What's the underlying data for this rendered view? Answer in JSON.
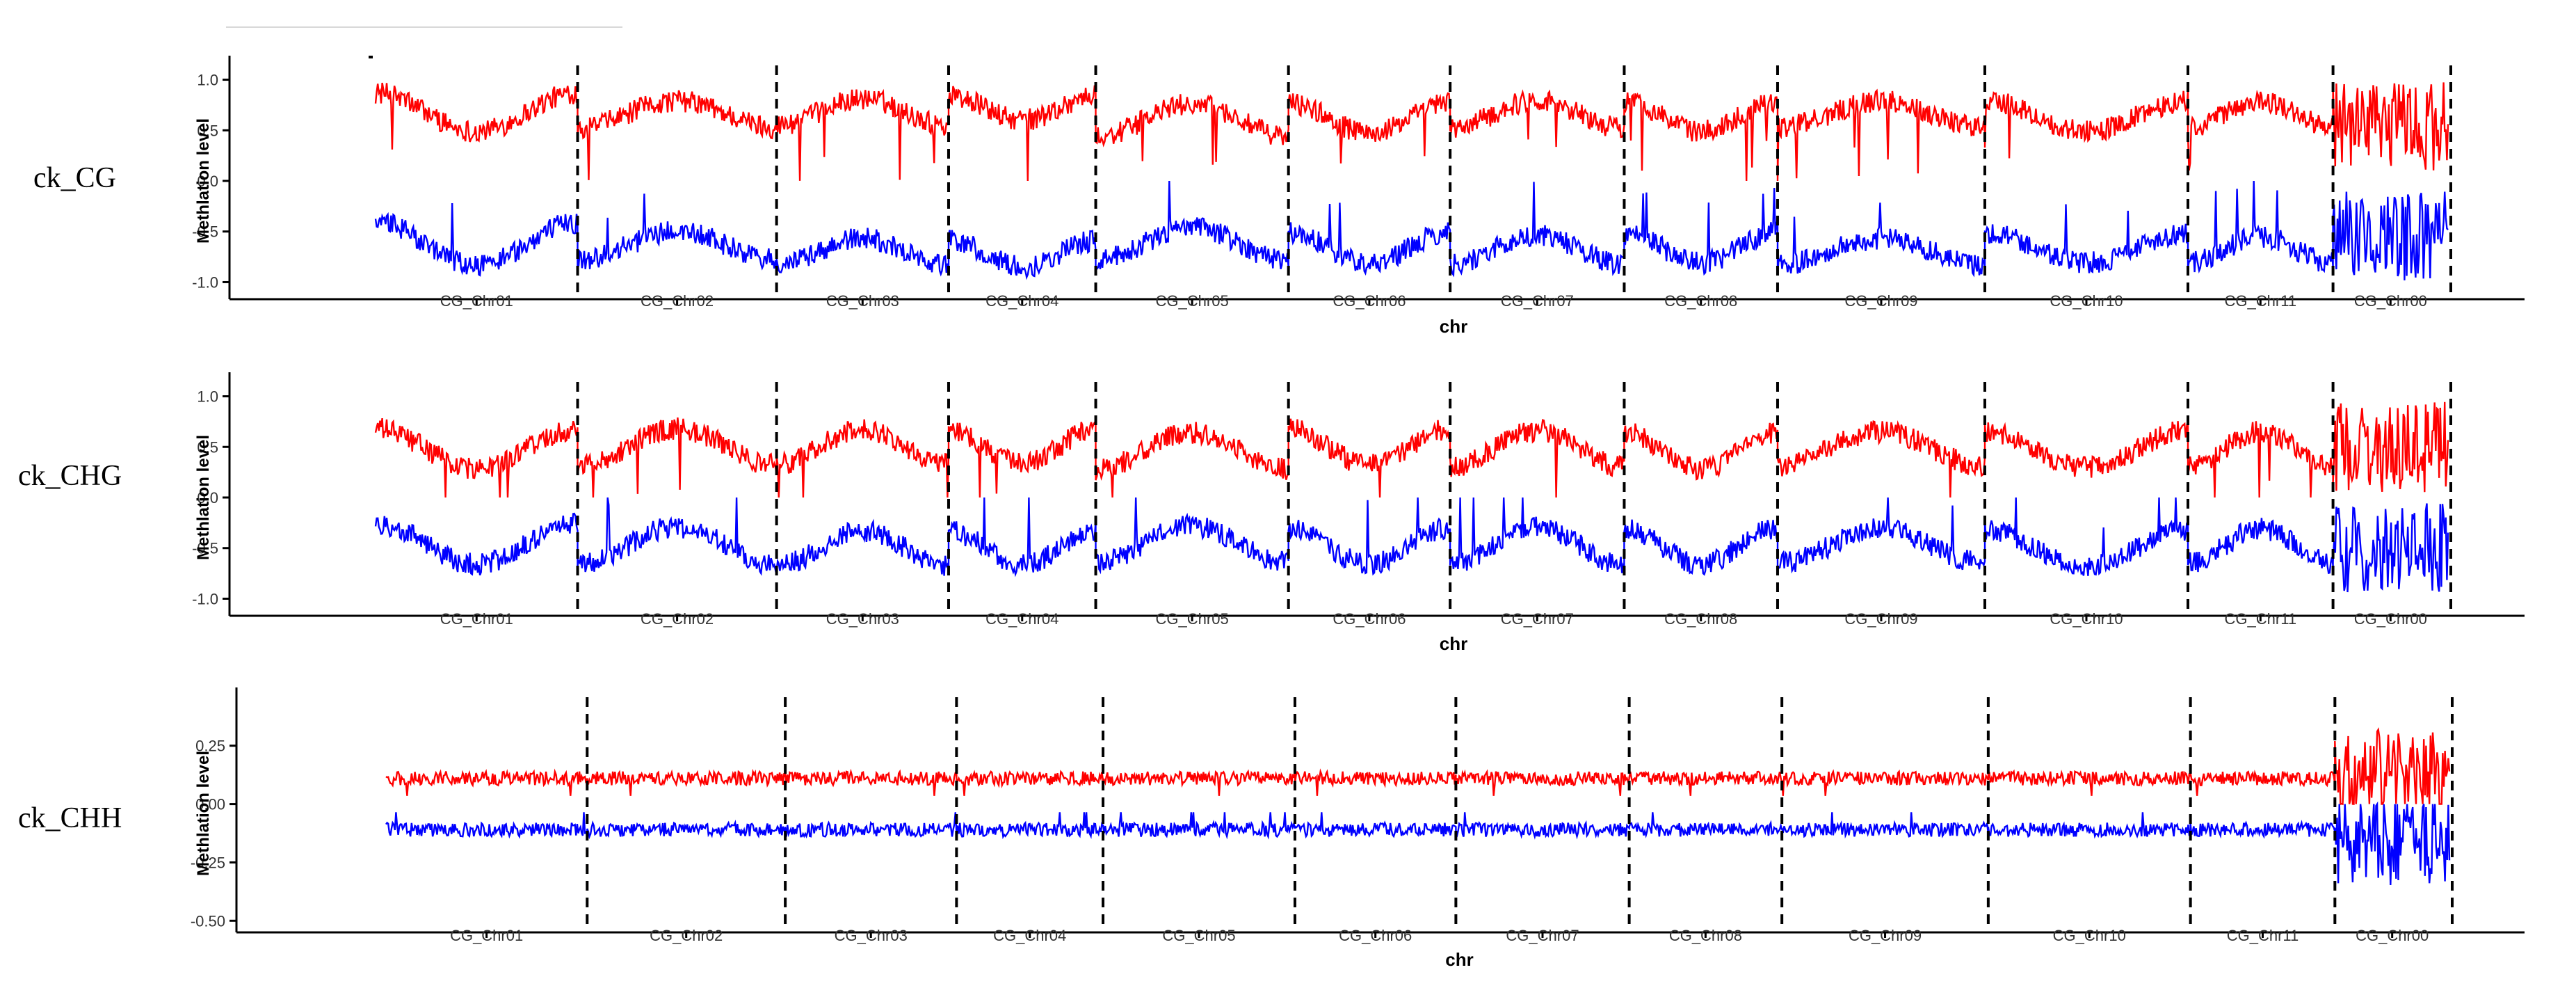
{
  "colors": {
    "upper": "#ff0000",
    "lower": "#0000ff",
    "axis": "#000000"
  },
  "chart_data": [
    {
      "type": "line",
      "panel_label": "ck_CG",
      "xlabel": "chr",
      "ylabel": "Methlation level",
      "ylim": [
        -1.1,
        1.1
      ],
      "yticks": [
        1.0,
        0.5,
        0.0,
        -0.5,
        -1.0
      ],
      "ytick_labels": [
        "1.0",
        "0.5",
        "0.0",
        "-0.5",
        "-1.0"
      ],
      "grid": false,
      "legend": "none",
      "chromosomes": [
        {
          "name": "CG_Chr01",
          "start": 0.0,
          "end": 0.0975,
          "pattern": "u",
          "upper_mean": 0.68,
          "upper_amp": 0.38,
          "lower_mean": -0.62,
          "lower_amp": 0.42
        },
        {
          "name": "CG_Chr02",
          "start": 0.0975,
          "end": 0.1935,
          "pattern": "n",
          "upper_mean": 0.66,
          "upper_amp": 0.26,
          "lower_mean": -0.64,
          "lower_amp": 0.28
        },
        {
          "name": "CG_Chr03",
          "start": 0.1935,
          "end": 0.2765,
          "pattern": "n",
          "upper_mean": 0.68,
          "upper_amp": 0.26,
          "lower_mean": -0.7,
          "lower_amp": 0.26
        },
        {
          "name": "CG_Chr04",
          "start": 0.2765,
          "end": 0.3475,
          "pattern": "u",
          "upper_mean": 0.72,
          "upper_amp": 0.24,
          "lower_mean": -0.72,
          "lower_amp": 0.26
        },
        {
          "name": "CG_Chr05",
          "start": 0.3475,
          "end": 0.4405,
          "pattern": "n",
          "upper_mean": 0.6,
          "upper_amp": 0.32,
          "lower_mean": -0.62,
          "lower_amp": 0.32
        },
        {
          "name": "CG_Chr06",
          "start": 0.4405,
          "end": 0.5185,
          "pattern": "u",
          "upper_mean": 0.62,
          "upper_amp": 0.3,
          "lower_mean": -0.66,
          "lower_amp": 0.3
        },
        {
          "name": "CG_Chr07",
          "start": 0.5185,
          "end": 0.6025,
          "pattern": "n",
          "upper_mean": 0.66,
          "upper_amp": 0.28,
          "lower_mean": -0.68,
          "lower_amp": 0.28
        },
        {
          "name": "CG_Chr08",
          "start": 0.6025,
          "end": 0.6765,
          "pattern": "u",
          "upper_mean": 0.64,
          "upper_amp": 0.3,
          "lower_mean": -0.66,
          "lower_amp": 0.3
        },
        {
          "name": "CG_Chr09",
          "start": 0.6765,
          "end": 0.7765,
          "pattern": "n",
          "upper_mean": 0.66,
          "upper_amp": 0.26,
          "lower_mean": -0.7,
          "lower_amp": 0.26
        },
        {
          "name": "CG_Chr10",
          "start": 0.7765,
          "end": 0.8745,
          "pattern": "u",
          "upper_mean": 0.64,
          "upper_amp": 0.3,
          "lower_mean": -0.66,
          "lower_amp": 0.3
        },
        {
          "name": "CG_Chr11",
          "start": 0.8745,
          "end": 0.9445,
          "pattern": "n",
          "upper_mean": 0.66,
          "upper_amp": 0.26,
          "lower_mean": -0.68,
          "lower_amp": 0.26
        },
        {
          "name": "CG_Chr00",
          "start": 0.9445,
          "end": 1.0,
          "pattern": "noise",
          "upper_mean": 0.55,
          "upper_amp": 0.45,
          "lower_mean": -0.55,
          "lower_amp": 0.45
        }
      ]
    },
    {
      "type": "line",
      "panel_label": "ck_CHG",
      "xlabel": "chr",
      "ylabel": "Methlation level",
      "ylim": [
        -1.1,
        1.1
      ],
      "yticks": [
        1.0,
        0.5,
        0.0,
        -0.5,
        -1.0
      ],
      "ytick_labels": [
        "1.0",
        "0.5",
        "0.0",
        "-0.5",
        "-1.0"
      ],
      "grid": false,
      "legend": "none",
      "chromosomes": [
        {
          "name": "CG_Chr01",
          "start": 0.0,
          "end": 0.0975,
          "pattern": "u",
          "upper_mean": 0.48,
          "upper_amp": 0.4,
          "lower_mean": -0.46,
          "lower_amp": 0.4
        },
        {
          "name": "CG_Chr02",
          "start": 0.0975,
          "end": 0.1935,
          "pattern": "n",
          "upper_mean": 0.5,
          "upper_amp": 0.36,
          "lower_mean": -0.48,
          "lower_amp": 0.38
        },
        {
          "name": "CG_Chr03",
          "start": 0.1935,
          "end": 0.2765,
          "pattern": "n",
          "upper_mean": 0.5,
          "upper_amp": 0.34,
          "lower_mean": -0.5,
          "lower_amp": 0.34
        },
        {
          "name": "CG_Chr04",
          "start": 0.2765,
          "end": 0.3475,
          "pattern": "u",
          "upper_mean": 0.5,
          "upper_amp": 0.34,
          "lower_mean": -0.5,
          "lower_amp": 0.34
        },
        {
          "name": "CG_Chr05",
          "start": 0.3475,
          "end": 0.4405,
          "pattern": "n",
          "upper_mean": 0.46,
          "upper_amp": 0.36,
          "lower_mean": -0.46,
          "lower_amp": 0.36
        },
        {
          "name": "CG_Chr06",
          "start": 0.4405,
          "end": 0.5185,
          "pattern": "u",
          "upper_mean": 0.5,
          "upper_amp": 0.36,
          "lower_mean": -0.48,
          "lower_amp": 0.36
        },
        {
          "name": "CG_Chr07",
          "start": 0.5185,
          "end": 0.6025,
          "pattern": "n",
          "upper_mean": 0.48,
          "upper_amp": 0.36,
          "lower_mean": -0.48,
          "lower_amp": 0.36
        },
        {
          "name": "CG_Chr08",
          "start": 0.6025,
          "end": 0.6765,
          "pattern": "u",
          "upper_mean": 0.46,
          "upper_amp": 0.36,
          "lower_mean": -0.48,
          "lower_amp": 0.36
        },
        {
          "name": "CG_Chr09",
          "start": 0.6765,
          "end": 0.7765,
          "pattern": "n",
          "upper_mean": 0.48,
          "upper_amp": 0.34,
          "lower_mean": -0.48,
          "lower_amp": 0.34
        },
        {
          "name": "CG_Chr10",
          "start": 0.7765,
          "end": 0.8745,
          "pattern": "u",
          "upper_mean": 0.48,
          "upper_amp": 0.36,
          "lower_mean": -0.5,
          "lower_amp": 0.36
        },
        {
          "name": "CG_Chr11",
          "start": 0.8745,
          "end": 0.9445,
          "pattern": "n",
          "upper_mean": 0.48,
          "upper_amp": 0.34,
          "lower_mean": -0.48,
          "lower_amp": 0.34
        },
        {
          "name": "CG_Chr00",
          "start": 0.9445,
          "end": 1.0,
          "pattern": "noise",
          "upper_mean": 0.5,
          "upper_amp": 0.45,
          "lower_mean": -0.5,
          "lower_amp": 0.45
        }
      ]
    },
    {
      "type": "line",
      "panel_label": "ck_CHH",
      "xlabel": "chr",
      "ylabel": "Methlation level",
      "ylim": [
        -0.52,
        0.44
      ],
      "yticks": [
        0.25,
        0.0,
        -0.25,
        -0.5
      ],
      "ytick_labels": [
        "0.25",
        "0.00",
        "-0.25",
        "-0.50"
      ],
      "grid": false,
      "legend": "none",
      "chromosomes": [
        {
          "name": "CG_Chr01",
          "start": 0.0,
          "end": 0.0975,
          "pattern": "flat",
          "upper_mean": 0.11,
          "upper_amp": 0.03,
          "lower_mean": -0.11,
          "lower_amp": 0.03
        },
        {
          "name": "CG_Chr02",
          "start": 0.0975,
          "end": 0.1935,
          "pattern": "flat",
          "upper_mean": 0.11,
          "upper_amp": 0.03,
          "lower_mean": -0.11,
          "lower_amp": 0.03
        },
        {
          "name": "CG_Chr03",
          "start": 0.1935,
          "end": 0.2765,
          "pattern": "flat",
          "upper_mean": 0.11,
          "upper_amp": 0.03,
          "lower_mean": -0.11,
          "lower_amp": 0.03
        },
        {
          "name": "CG_Chr04",
          "start": 0.2765,
          "end": 0.3475,
          "pattern": "flat",
          "upper_mean": 0.11,
          "upper_amp": 0.03,
          "lower_mean": -0.11,
          "lower_amp": 0.03
        },
        {
          "name": "CG_Chr05",
          "start": 0.3475,
          "end": 0.4405,
          "pattern": "flat",
          "upper_mean": 0.11,
          "upper_amp": 0.03,
          "lower_mean": -0.11,
          "lower_amp": 0.03
        },
        {
          "name": "CG_Chr06",
          "start": 0.4405,
          "end": 0.5185,
          "pattern": "flat",
          "upper_mean": 0.11,
          "upper_amp": 0.03,
          "lower_mean": -0.11,
          "lower_amp": 0.03
        },
        {
          "name": "CG_Chr07",
          "start": 0.5185,
          "end": 0.6025,
          "pattern": "flat",
          "upper_mean": 0.11,
          "upper_amp": 0.03,
          "lower_mean": -0.11,
          "lower_amp": 0.03
        },
        {
          "name": "CG_Chr08",
          "start": 0.6025,
          "end": 0.6765,
          "pattern": "flat",
          "upper_mean": 0.11,
          "upper_amp": 0.03,
          "lower_mean": -0.11,
          "lower_amp": 0.03
        },
        {
          "name": "CG_Chr09",
          "start": 0.6765,
          "end": 0.7765,
          "pattern": "flat",
          "upper_mean": 0.11,
          "upper_amp": 0.03,
          "lower_mean": -0.11,
          "lower_amp": 0.03
        },
        {
          "name": "CG_Chr10",
          "start": 0.7765,
          "end": 0.8745,
          "pattern": "flat",
          "upper_mean": 0.11,
          "upper_amp": 0.03,
          "lower_mean": -0.11,
          "lower_amp": 0.03
        },
        {
          "name": "CG_Chr11",
          "start": 0.8745,
          "end": 0.9445,
          "pattern": "flat",
          "upper_mean": 0.11,
          "upper_amp": 0.03,
          "lower_mean": -0.11,
          "lower_amp": 0.03
        },
        {
          "name": "CG_Chr00",
          "start": 0.9445,
          "end": 1.0,
          "pattern": "noise",
          "upper_mean": 0.14,
          "upper_amp": 0.18,
          "lower_mean": -0.15,
          "lower_amp": 0.2
        }
      ]
    }
  ]
}
